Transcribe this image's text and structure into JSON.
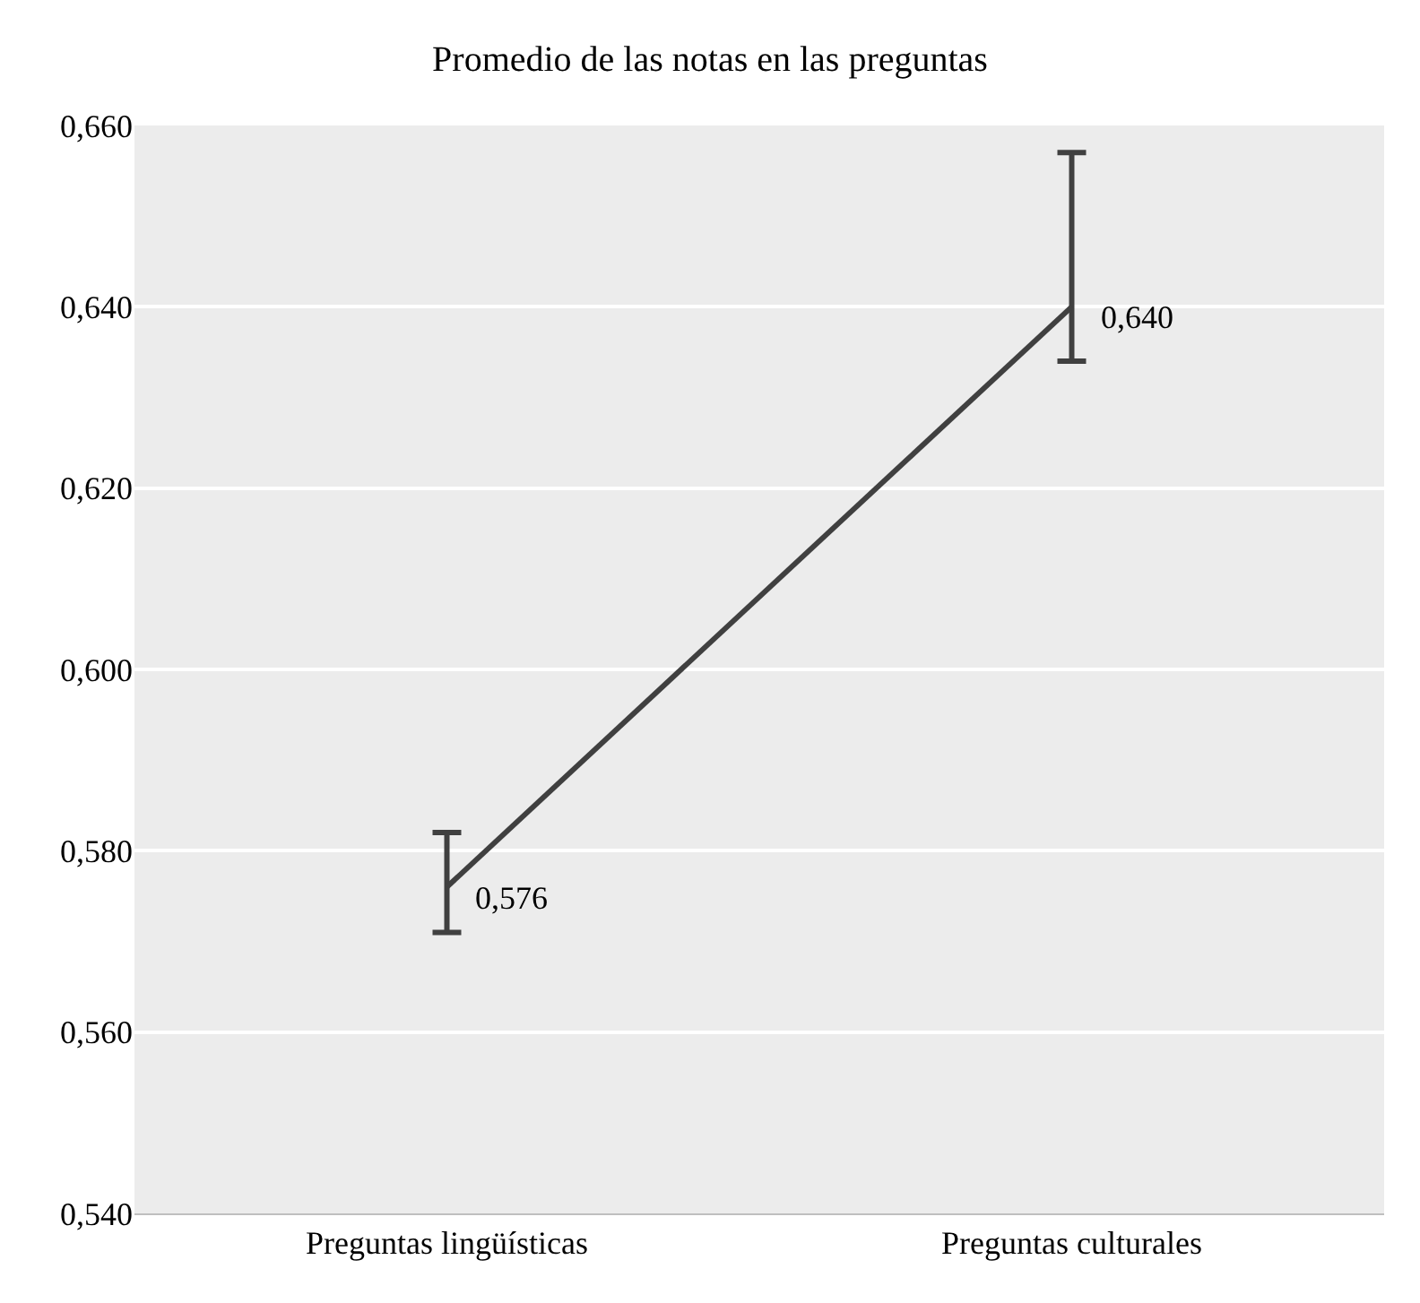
{
  "chart_data": {
    "type": "line",
    "title": "Promedio de las notas en las preguntas",
    "categories": [
      "Preguntas lingüísticas",
      "Preguntas culturales"
    ],
    "series": [
      {
        "color": "#404040",
        "values": [
          0.576,
          0.64
        ],
        "errors": [
          [
            0.571,
            0.582
          ],
          [
            0.634,
            0.657
          ]
        ],
        "value_labels": [
          "0,576",
          "0,640"
        ]
      }
    ],
    "ylim": [
      0.54,
      0.66
    ],
    "yticks": [
      {
        "value": 0.54,
        "label": "0,540"
      },
      {
        "value": 0.56,
        "label": "0,560"
      },
      {
        "value": 0.58,
        "label": "0,580"
      },
      {
        "value": 0.6,
        "label": "0,600"
      },
      {
        "value": 0.62,
        "label": "0,620"
      },
      {
        "value": 0.64,
        "label": "0,640"
      },
      {
        "value": 0.66,
        "label": "0,660"
      }
    ],
    "grid": "y",
    "marker": "none",
    "line_style": "solid"
  }
}
